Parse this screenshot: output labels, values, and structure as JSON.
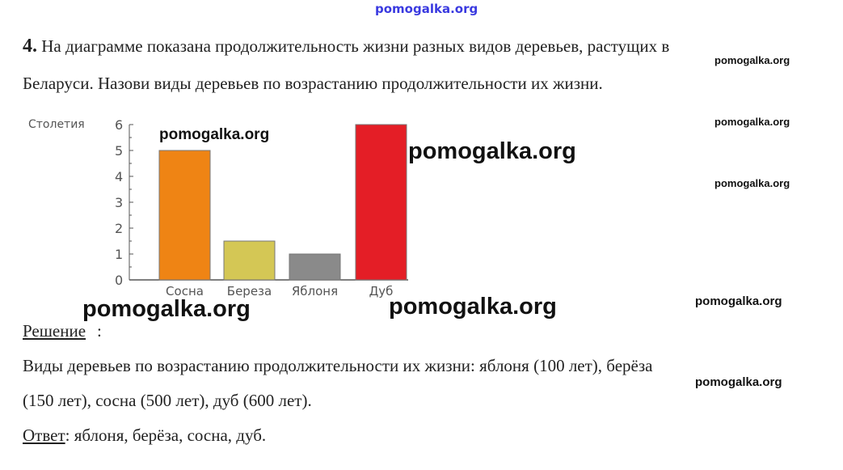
{
  "watermarks": {
    "top": "pomogalka.org",
    "text": "pomogalka.org"
  },
  "task": {
    "number": "4.",
    "line1": "На диаграмме показана продолжительность жизни разных видов деревьев, растущих в",
    "line2": "Беларуси. Назови виды деревьев по возрастанию продолжительности их жизни."
  },
  "chart_data": {
    "type": "bar",
    "ylabel": "Столетия",
    "categories": [
      "Сосна",
      "Береза",
      "Яблоня",
      "Дуб"
    ],
    "values": [
      5,
      1.5,
      1,
      6
    ],
    "colors": [
      "#ef8414",
      "#d4c755",
      "#8a8a8a",
      "#e41e26"
    ],
    "ylim": [
      0,
      6
    ],
    "yticks": [
      "0",
      "1",
      "2",
      "3",
      "4",
      "5",
      "6"
    ],
    "grid": false
  },
  "solution": {
    "label": "Решение",
    "line1": "Виды деревьев по возрастанию продолжительности их жизни: яблоня (100 лет), берёза",
    "line2": "(150 лет), сосна (500 лет), дуб (600 лет)."
  },
  "answer": {
    "label": "Ответ",
    "text": ": яблоня, берёза, сосна, дуб."
  }
}
